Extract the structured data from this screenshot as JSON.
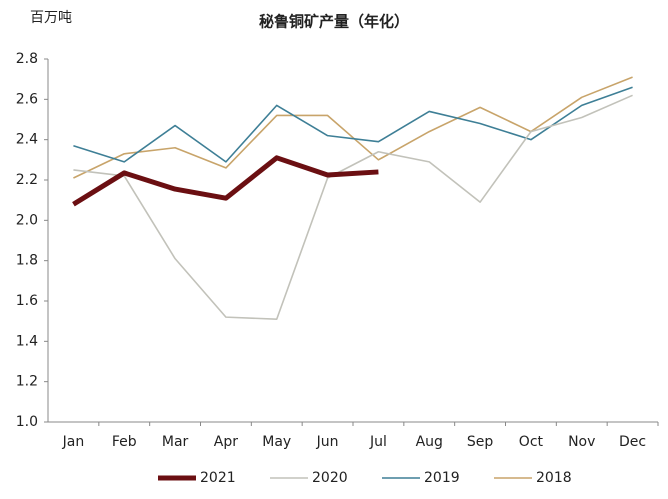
{
  "chart_data": {
    "type": "line",
    "title": "秘鲁铜矿产量（年化）",
    "y_label": "百万吨",
    "categories": [
      "Jan",
      "Feb",
      "Mar",
      "Apr",
      "May",
      "Jun",
      "Jul",
      "Aug",
      "Sep",
      "Oct",
      "Nov",
      "Dec"
    ],
    "ylim": [
      1.0,
      2.8
    ],
    "yticks": [
      {
        "value": 1.0,
        "label": "1.0"
      },
      1.2,
      1.4,
      1.6,
      1.8,
      {
        "value": 2.0,
        "label": "2.0"
      },
      2.2,
      2.4,
      2.6,
      2.8
    ],
    "legend": "bottom",
    "series": [
      {
        "name": "2021",
        "color": "#6b0f12",
        "values": [
          2.08,
          2.235,
          2.155,
          2.11,
          2.31,
          2.225,
          2.24,
          null,
          null,
          null,
          null,
          null
        ]
      },
      {
        "name": "2020",
        "color": "#c2c2ba",
        "values": [
          2.25,
          2.22,
          1.81,
          1.52,
          1.51,
          2.21,
          2.34,
          2.29,
          2.09,
          2.44,
          2.51,
          2.62
        ]
      },
      {
        "name": "2019",
        "color": "#3e7f96",
        "values": [
          2.37,
          2.29,
          2.47,
          2.29,
          2.57,
          2.42,
          2.39,
          2.54,
          2.48,
          2.4,
          2.57,
          2.66
        ]
      },
      {
        "name": "2018",
        "color": "#c8a46a",
        "values": [
          2.21,
          2.33,
          2.36,
          2.26,
          2.52,
          2.52,
          2.3,
          2.44,
          2.56,
          2.44,
          2.61,
          2.71
        ]
      }
    ]
  }
}
